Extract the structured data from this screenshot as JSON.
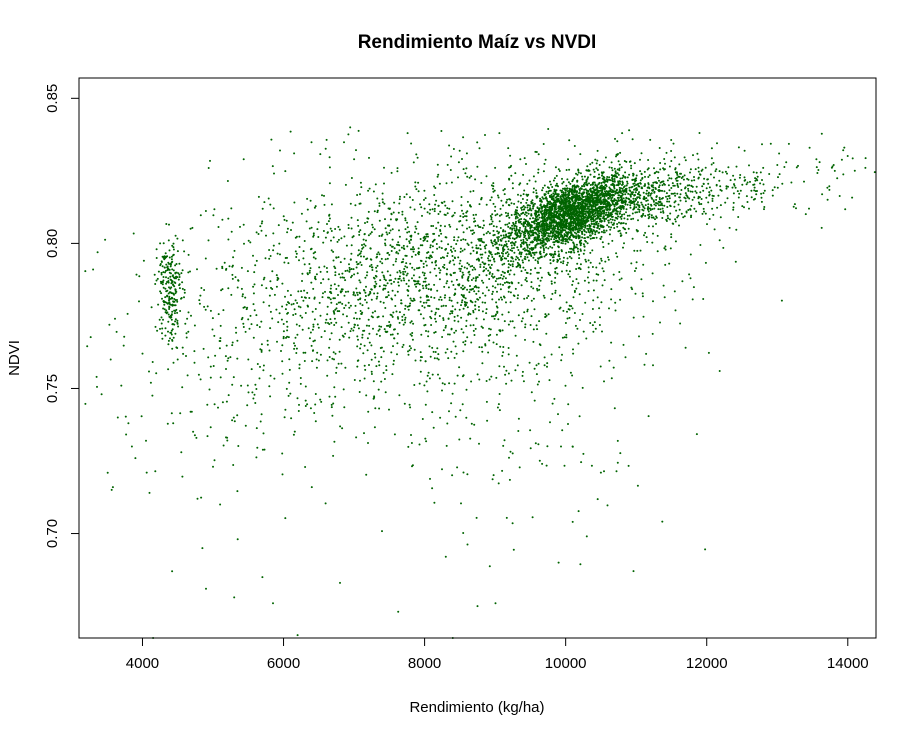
{
  "chart_data": {
    "type": "scatter",
    "title": "Rendimiento Maíz vs NVDI",
    "xlabel": "Rendimiento (kg/ha)",
    "ylabel": "NDVI",
    "xlim": [
      3100,
      14400
    ],
    "ylim": [
      0.664,
      0.857
    ],
    "x_ticks": [
      4000,
      6000,
      8000,
      10000,
      12000,
      14000
    ],
    "x_tick_labels": [
      "4000",
      "6000",
      "8000",
      "10000",
      "12000",
      "14000"
    ],
    "y_ticks": [
      0.7,
      0.75,
      0.8,
      0.85
    ],
    "y_tick_labels": [
      "0.70",
      "0.75",
      "0.80",
      "0.85"
    ],
    "grid": false,
    "point_color": "#006400",
    "point_count_estimate": 6000,
    "series": [
      {
        "points": [
          [
            3300,
            0.791
          ],
          [
            3350,
            0.754
          ],
          [
            3420,
            0.748
          ],
          [
            3550,
            0.76
          ],
          [
            3580,
            0.716
          ],
          [
            3610,
            0.774
          ],
          [
            3650,
            0.74
          ],
          [
            3700,
            0.751
          ],
          [
            3800,
            0.738
          ],
          [
            3850,
            0.73
          ],
          [
            3900,
            0.726
          ],
          [
            3950,
            0.78
          ],
          [
            4000,
            0.762
          ],
          [
            4020,
            0.794
          ],
          [
            4050,
            0.732
          ],
          [
            4100,
            0.714
          ],
          [
            4120,
            0.752
          ],
          [
            4150,
            0.664
          ],
          [
            4180,
            0.786
          ],
          [
            4200,
            0.798
          ],
          [
            4250,
            0.8
          ],
          [
            4300,
            0.795
          ],
          [
            4320,
            0.79
          ],
          [
            4350,
            0.782
          ],
          [
            4380,
            0.778
          ],
          [
            4400,
            0.775
          ],
          [
            4420,
            0.787
          ],
          [
            4450,
            0.772
          ],
          [
            4470,
            0.784
          ],
          [
            4500,
            0.76
          ],
          [
            4420,
            0.687
          ],
          [
            4550,
            0.728
          ],
          [
            4650,
            0.79
          ],
          [
            4700,
            0.742
          ],
          [
            4780,
            0.712
          ],
          [
            4850,
            0.695
          ],
          [
            4900,
            0.681
          ],
          [
            5000,
            0.723
          ],
          [
            5100,
            0.71
          ],
          [
            5200,
            0.733
          ],
          [
            5300,
            0.678
          ],
          [
            5350,
            0.698
          ],
          [
            5500,
            0.76
          ],
          [
            5600,
            0.745
          ],
          [
            5700,
            0.685
          ],
          [
            5850,
            0.676
          ],
          [
            5950,
            0.832
          ],
          [
            6050,
            0.77
          ],
          [
            6150,
            0.831
          ],
          [
            6200,
            0.665
          ],
          [
            6400,
            0.716
          ],
          [
            6600,
            0.802
          ],
          [
            6800,
            0.683
          ],
          [
            7000,
            0.829
          ],
          [
            7200,
            0.742
          ],
          [
            7400,
            0.79
          ],
          [
            7600,
            0.808
          ],
          [
            7800,
            0.781
          ],
          [
            8000,
            0.812
          ],
          [
            8200,
            0.76
          ],
          [
            8300,
            0.692
          ],
          [
            8400,
            0.664
          ],
          [
            8600,
            0.831
          ],
          [
            8750,
            0.675
          ],
          [
            8900,
            0.804
          ],
          [
            9000,
            0.826
          ],
          [
            9200,
            0.807
          ],
          [
            9400,
            0.798
          ],
          [
            9500,
            0.812
          ],
          [
            9600,
            0.803
          ],
          [
            9700,
            0.817
          ],
          [
            9800,
            0.808
          ],
          [
            9900,
            0.69
          ],
          [
            10000,
            0.811
          ],
          [
            10100,
            0.704
          ],
          [
            10200,
            0.815
          ],
          [
            10300,
            0.699
          ],
          [
            10400,
            0.818
          ],
          [
            10500,
            0.721
          ],
          [
            10600,
            0.822
          ],
          [
            10700,
            0.836
          ],
          [
            10800,
            0.838
          ],
          [
            10900,
            0.839
          ],
          [
            11000,
            0.815
          ],
          [
            11200,
            0.812
          ],
          [
            11400,
            0.818
          ],
          [
            11600,
            0.823
          ],
          [
            11700,
            0.764
          ],
          [
            11800,
            0.815
          ],
          [
            12000,
            0.819
          ],
          [
            12200,
            0.809
          ],
          [
            12400,
            0.822
          ],
          [
            12600,
            0.812
          ],
          [
            12800,
            0.826
          ],
          [
            13000,
            0.827
          ],
          [
            13200,
            0.821
          ],
          [
            13450,
            0.812
          ],
          [
            13600,
            0.828
          ],
          [
            13800,
            0.827
          ],
          [
            13950,
            0.833
          ],
          [
            14100,
            0.825
          ],
          [
            14250,
            0.826
          ]
        ]
      }
    ],
    "clusters": [
      {
        "x_mean": 10050,
        "x_sd": 430,
        "y_mean": 0.81,
        "y_sd": 0.0065,
        "rho": 0.55,
        "n": 2400
      },
      {
        "x_mean": 11000,
        "x_sd": 650,
        "y_mean": 0.816,
        "y_sd": 0.0065,
        "rho": 0.35,
        "n": 600
      },
      {
        "x_mean": 8600,
        "x_sd": 1400,
        "y_mean": 0.792,
        "y_sd": 0.017,
        "rho": 0.3,
        "n": 1700
      },
      {
        "x_mean": 6500,
        "x_sd": 1400,
        "y_mean": 0.778,
        "y_sd": 0.025,
        "rho": 0.3,
        "n": 700
      },
      {
        "x_mean": 4390,
        "x_sd": 80,
        "y_mean": 0.784,
        "y_sd": 0.01,
        "rho": 0.0,
        "n": 230
      },
      {
        "x_mean": 12600,
        "x_sd": 700,
        "y_mean": 0.82,
        "y_sd": 0.006,
        "rho": 0.2,
        "n": 150
      },
      {
        "x_mean": 9200,
        "x_sd": 1200,
        "y_mean": 0.745,
        "y_sd": 0.025,
        "rho": 0.1,
        "n": 200
      }
    ]
  }
}
